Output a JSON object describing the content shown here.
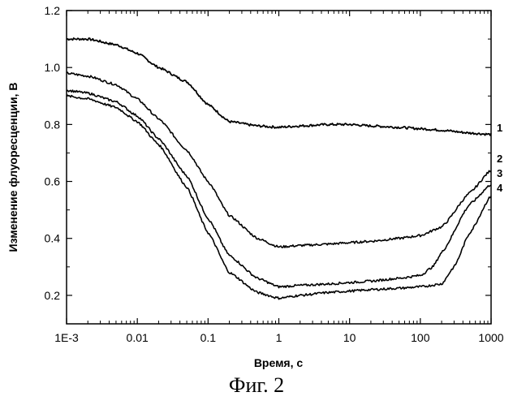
{
  "figure": {
    "caption": "Фиг. 2"
  },
  "chart_data": {
    "type": "line",
    "xlabel": "Время, с",
    "ylabel": "Изменение флуоресценции, В",
    "xscale": "log",
    "xlim": [
      0.001,
      1000
    ],
    "ylim": [
      0.1,
      1.2
    ],
    "xticks": [
      {
        "value": 0.001,
        "label": "1E-3"
      },
      {
        "value": 0.01,
        "label": "0.01"
      },
      {
        "value": 0.1,
        "label": "0.1"
      },
      {
        "value": 1,
        "label": "1"
      },
      {
        "value": 10,
        "label": "10"
      },
      {
        "value": 100,
        "label": "100"
      },
      {
        "value": 1000,
        "label": "1000"
      }
    ],
    "yticks": [
      {
        "value": 0.2,
        "label": "0.2"
      },
      {
        "value": 0.4,
        "label": "0.4"
      },
      {
        "value": 0.6,
        "label": "0.6"
      },
      {
        "value": 0.8,
        "label": "0.8"
      },
      {
        "value": 1.0,
        "label": "1.0"
      },
      {
        "value": 1.2,
        "label": "1.2"
      }
    ],
    "grid": false,
    "color": "#000000",
    "series": [
      {
        "name": "1",
        "x": [
          0.001,
          0.002,
          0.005,
          0.01,
          0.02,
          0.05,
          0.1,
          0.2,
          0.5,
          1,
          2,
          5,
          10,
          20,
          50,
          100,
          200,
          500,
          1000
        ],
        "y": [
          1.1,
          1.1,
          1.08,
          1.05,
          1.0,
          0.95,
          0.87,
          0.81,
          0.795,
          0.79,
          0.795,
          0.8,
          0.8,
          0.795,
          0.79,
          0.785,
          0.78,
          0.77,
          0.765
        ]
      },
      {
        "name": "2",
        "x": [
          0.001,
          0.002,
          0.005,
          0.01,
          0.02,
          0.05,
          0.1,
          0.2,
          0.5,
          1,
          2,
          5,
          10,
          20,
          50,
          100,
          200,
          500,
          1000
        ],
        "y": [
          0.98,
          0.97,
          0.94,
          0.89,
          0.82,
          0.71,
          0.6,
          0.48,
          0.4,
          0.37,
          0.375,
          0.38,
          0.385,
          0.39,
          0.4,
          0.41,
          0.44,
          0.56,
          0.64
        ]
      },
      {
        "name": "3",
        "x": [
          0.001,
          0.002,
          0.005,
          0.01,
          0.02,
          0.05,
          0.1,
          0.2,
          0.5,
          1,
          2,
          5,
          10,
          20,
          50,
          100,
          150,
          200,
          500,
          1000
        ],
        "y": [
          0.92,
          0.91,
          0.88,
          0.83,
          0.75,
          0.62,
          0.47,
          0.34,
          0.26,
          0.23,
          0.235,
          0.24,
          0.245,
          0.25,
          0.26,
          0.27,
          0.3,
          0.35,
          0.52,
          0.59
        ]
      },
      {
        "name": "4",
        "x": [
          0.001,
          0.002,
          0.005,
          0.01,
          0.02,
          0.05,
          0.1,
          0.2,
          0.5,
          1,
          2,
          5,
          10,
          20,
          50,
          100,
          200,
          300,
          500,
          1000
        ],
        "y": [
          0.9,
          0.89,
          0.86,
          0.81,
          0.73,
          0.58,
          0.42,
          0.28,
          0.21,
          0.19,
          0.2,
          0.21,
          0.215,
          0.22,
          0.225,
          0.23,
          0.24,
          0.3,
          0.42,
          0.55
        ]
      }
    ]
  }
}
